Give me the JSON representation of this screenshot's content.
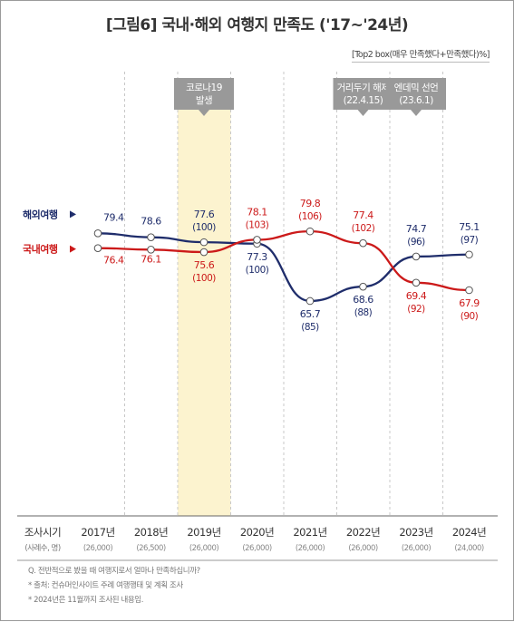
{
  "title": "[그림6] 국내·해외 여행지 만족도 ('17~'24년)",
  "subtitle": "[Top2 box(매우 만족했다+만족했다)%]",
  "footer": {
    "notes": [
      "Q. 전반적으로 봤을 때 여행지로서 얼마나 만족하십니까?",
      "* 출처: 컨슈머인사이트 주례 여행행태 및 계획 조사",
      "* 2024년은 11월까지 조사된 내용임."
    ]
  },
  "chart_data": {
    "type": "line",
    "title": "[그림6] 국내·해외 여행지 만족도 ('17~'24년)",
    "subtitle": "[Top2 box(매우 만족했다+만족했다)%]",
    "x_header": "조사시기",
    "x_subheader": "(사례수, 명)",
    "categories": [
      "2017년",
      "2018년",
      "2019년",
      "2020년",
      "2021년",
      "2022년",
      "2023년",
      "2024년"
    ],
    "sample_sizes": [
      "(26,000)",
      "(26,500)",
      "(26,000)",
      "(26,000)",
      "(26,000)",
      "(26,000)",
      "(26,000)",
      "(24,000)"
    ],
    "series": [
      {
        "name": "해외여행",
        "color": "#1f2d6b",
        "values": [
          79.4,
          78.6,
          77.6,
          77.3,
          65.7,
          68.6,
          74.7,
          75.1
        ],
        "index": [
          null,
          null,
          "(100)",
          "(100)",
          "(85)",
          "(88)",
          "(96)",
          "(97)"
        ]
      },
      {
        "name": "국내여행",
        "color": "#cc1a1a",
        "values": [
          76.4,
          76.1,
          75.6,
          78.1,
          79.8,
          77.4,
          69.4,
          67.9
        ],
        "index": [
          null,
          null,
          "(100)",
          "(103)",
          "(106)",
          "(102)",
          "(92)",
          "(90)"
        ]
      }
    ],
    "highlight_category": "2019년",
    "annotations": [
      {
        "text": [
          "코로나19",
          "발생"
        ],
        "category": "2019년"
      },
      {
        "text": [
          "거리두기 해제",
          "(22.4.15)"
        ],
        "category": "2022년"
      },
      {
        "text": [
          "엔데믹 선언",
          "(23.6.1)"
        ],
        "category": "2023년"
      }
    ],
    "legend": "left, inline with series start",
    "grid": "vertical dashed separators"
  }
}
